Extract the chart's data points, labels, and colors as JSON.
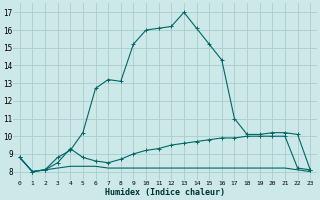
{
  "xlabel": "Humidex (Indice chaleur)",
  "xlim": [
    -0.5,
    23.5
  ],
  "ylim": [
    7.5,
    17.5
  ],
  "xticks": [
    0,
    1,
    2,
    3,
    4,
    5,
    6,
    7,
    8,
    9,
    10,
    11,
    12,
    13,
    14,
    15,
    16,
    17,
    18,
    19,
    20,
    21,
    22,
    23
  ],
  "yticks": [
    8,
    9,
    10,
    11,
    12,
    13,
    14,
    15,
    16,
    17
  ],
  "bg_color": "#cce8e8",
  "grid_color": "#aacccc",
  "line_color": "#006666",
  "line1_x": [
    0,
    1,
    2,
    3,
    4,
    5,
    6,
    7,
    8,
    9,
    10,
    11,
    12,
    13,
    14,
    15,
    16,
    17,
    18,
    19,
    20,
    21,
    22,
    23
  ],
  "line1_y": [
    8.8,
    8.0,
    8.1,
    8.8,
    9.2,
    10.2,
    12.7,
    13.2,
    13.1,
    15.2,
    16.0,
    16.1,
    16.2,
    17.0,
    16.1,
    15.2,
    14.3,
    11.0,
    10.1,
    10.1,
    10.2,
    10.2,
    10.1,
    8.1
  ],
  "line2_x": [
    0,
    1,
    2,
    3,
    4,
    5,
    6,
    7,
    8,
    9,
    10,
    11,
    12,
    13,
    14,
    15,
    16,
    17,
    18,
    19,
    20,
    21,
    22,
    23
  ],
  "line2_y": [
    8.8,
    8.0,
    8.1,
    8.5,
    9.3,
    8.8,
    8.6,
    8.5,
    8.7,
    9.0,
    9.2,
    9.3,
    9.5,
    9.6,
    9.7,
    9.8,
    9.9,
    9.9,
    10.0,
    10.0,
    10.0,
    10.0,
    8.2,
    8.1
  ],
  "line3_x": [
    0,
    1,
    2,
    3,
    4,
    5,
    6,
    7,
    8,
    9,
    10,
    11,
    12,
    13,
    14,
    15,
    16,
    17,
    18,
    19,
    20,
    21,
    22,
    23
  ],
  "line3_y": [
    8.8,
    8.0,
    8.1,
    8.2,
    8.3,
    8.3,
    8.3,
    8.2,
    8.2,
    8.2,
    8.2,
    8.2,
    8.2,
    8.2,
    8.2,
    8.2,
    8.2,
    8.2,
    8.2,
    8.2,
    8.2,
    8.2,
    8.1,
    8.0
  ]
}
